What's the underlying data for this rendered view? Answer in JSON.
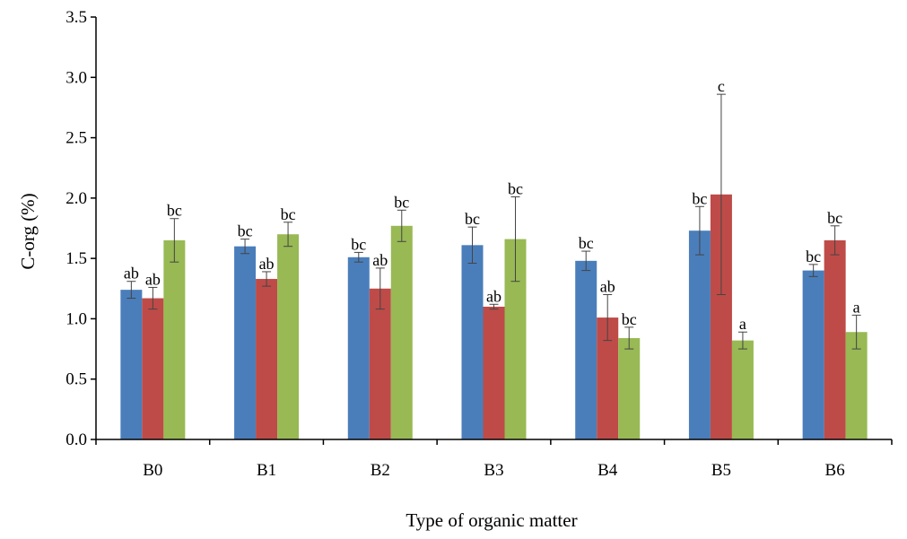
{
  "chart_data": {
    "type": "bar",
    "categories": [
      "B0",
      "B1",
      "B2",
      "B3",
      "B4",
      "B5",
      "B6"
    ],
    "xlabel": "Type of organic matter",
    "ylabel": "C-org (%)",
    "ylim": [
      0,
      3.5
    ],
    "yticks": [
      "0.0",
      "0.5",
      "1.0",
      "1.5",
      "2.0",
      "2.5",
      "3.0",
      "3.5"
    ],
    "grid": false,
    "series": [
      {
        "color": "#4a7ebb",
        "values": [
          1.24,
          1.6,
          1.51,
          1.61,
          1.48,
          1.73,
          1.4
        ],
        "errors": [
          0.07,
          0.06,
          0.04,
          0.15,
          0.08,
          0.2,
          0.05
        ],
        "labels": [
          "ab",
          "bc",
          "bc",
          "bc",
          "bc",
          "bc",
          "bc"
        ]
      },
      {
        "color": "#be4b48",
        "values": [
          1.17,
          1.33,
          1.25,
          1.1,
          1.01,
          2.03,
          1.65
        ],
        "errors": [
          0.09,
          0.06,
          0.17,
          0.02,
          0.19,
          0.83,
          0.12
        ],
        "labels": [
          "ab",
          "ab",
          "ab",
          "ab",
          "ab",
          "c",
          "bc"
        ]
      },
      {
        "color": "#98b954",
        "values": [
          1.65,
          1.7,
          1.77,
          1.66,
          0.84,
          0.82,
          0.89
        ],
        "errors": [
          0.18,
          0.1,
          0.13,
          0.35,
          0.09,
          0.07,
          0.14
        ],
        "labels": [
          "bc",
          "bc",
          "bc",
          "bc",
          "bc",
          "a",
          "a"
        ]
      }
    ]
  }
}
